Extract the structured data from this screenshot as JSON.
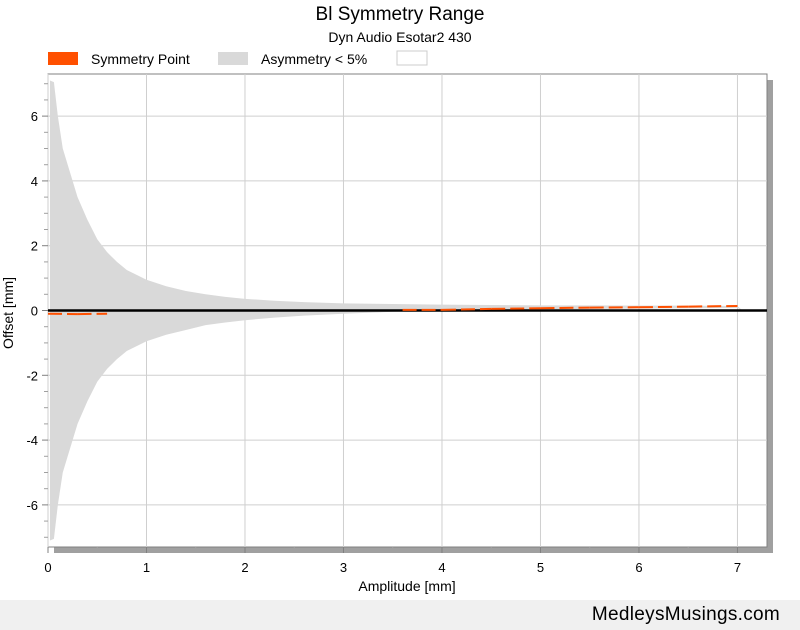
{
  "chart_data": {
    "type": "area",
    "title": "Bl Symmetry Range",
    "subtitle": "Dyn Audio Esotar2 430",
    "xlabel": "Amplitude [mm]",
    "ylabel": "Offset [mm]",
    "xlim": [
      0,
      7.3
    ],
    "ylim": [
      -7.3,
      7.3
    ],
    "x_ticks": [
      "0",
      "1",
      "2",
      "3",
      "4",
      "5",
      "6",
      "7"
    ],
    "y_ticks": [
      "-6",
      "-4",
      "-2",
      "0",
      "2",
      "4",
      "6"
    ],
    "grid": true,
    "legend_position": "top-left",
    "legend": [
      {
        "name": "Symmetry Point",
        "color": "#ff5000"
      },
      {
        "name": "Asymmetry < 5%",
        "color": "#d9d9d9"
      },
      {
        "name": "",
        "color": "#ffffff"
      }
    ],
    "series": [
      {
        "name": "Asymmetry < 5%",
        "x": [
          0.02,
          0.06,
          0.1,
          0.15,
          0.2,
          0.3,
          0.4,
          0.5,
          0.6,
          0.7,
          0.8,
          0.9,
          1.0,
          1.2,
          1.4,
          1.6,
          1.8,
          2.0,
          2.3,
          2.6,
          3.0,
          3.5,
          4.0,
          4.5,
          5.0,
          5.5,
          6.0,
          6.5,
          7.0,
          7.05
        ],
        "upper": [
          7.1,
          7.05,
          6.0,
          5.0,
          4.5,
          3.5,
          2.8,
          2.2,
          1.8,
          1.5,
          1.25,
          1.1,
          0.95,
          0.75,
          0.6,
          0.5,
          0.42,
          0.36,
          0.3,
          0.26,
          0.22,
          0.2,
          0.18,
          0.17,
          0.16,
          0.16,
          0.15,
          0.15,
          0.14,
          0.0
        ],
        "lower": [
          -7.1,
          -7.05,
          -6.0,
          -5.0,
          -4.5,
          -3.5,
          -2.8,
          -2.2,
          -1.8,
          -1.5,
          -1.25,
          -1.1,
          -0.95,
          -0.75,
          -0.6,
          -0.45,
          -0.37,
          -0.3,
          -0.22,
          -0.16,
          -0.1,
          -0.04,
          0.0,
          0.02,
          0.04,
          0.05,
          0.06,
          0.07,
          0.08,
          0.0
        ],
        "color": "#d9d9d9"
      },
      {
        "name": "Symmetry Point",
        "x": [
          0.0,
          0.3,
          0.6,
          3.6,
          4.0,
          4.5,
          5.0,
          5.5,
          6.0,
          6.5,
          7.0
        ],
        "y": [
          -0.1,
          -0.11,
          -0.1,
          0.02,
          0.02,
          0.05,
          0.07,
          0.09,
          0.1,
          0.12,
          0.14
        ],
        "color": "#ff5000"
      }
    ],
    "reference_line": {
      "y": 0,
      "color": "#000000"
    }
  },
  "footer": {
    "text": "MedleysMusings.com"
  }
}
